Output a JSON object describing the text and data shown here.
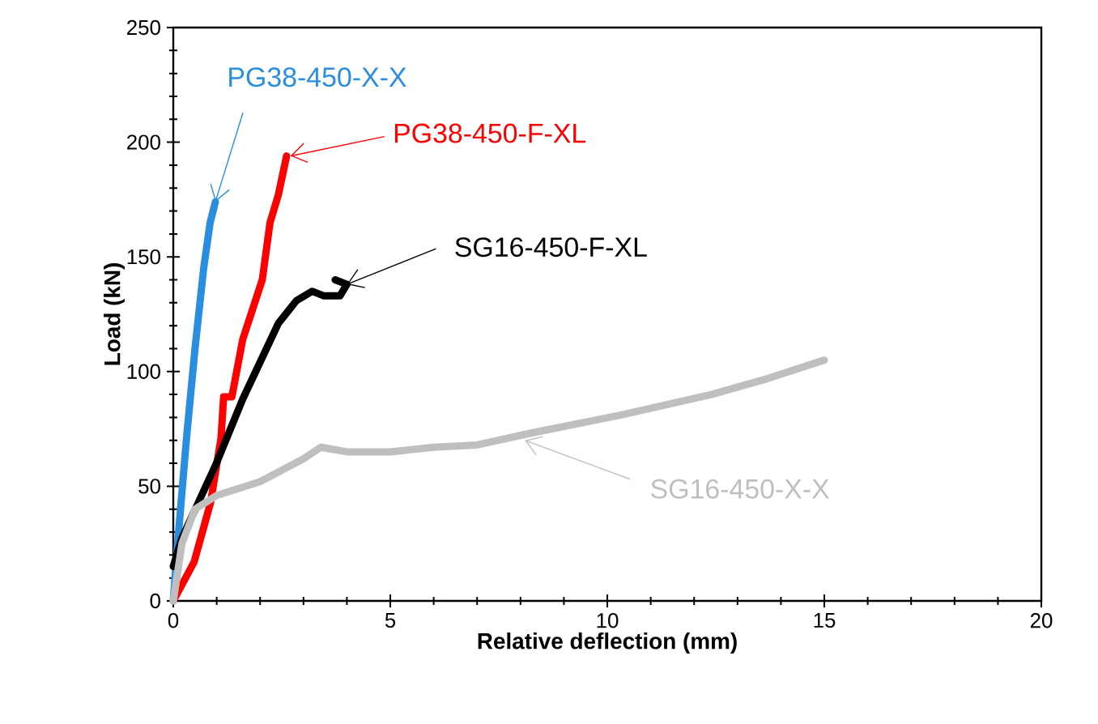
{
  "chart_data": {
    "type": "line",
    "xlabel": "Relative deflection (mm)",
    "ylabel": "Load (kN)",
    "xlim": [
      0,
      20
    ],
    "ylim": [
      0,
      250
    ],
    "xticks": [
      0,
      5,
      10,
      15,
      20
    ],
    "yticks": [
      0,
      50,
      100,
      150,
      200,
      250
    ],
    "series": [
      {
        "color": "#2a8ee0",
        "x": [
          0,
          0.1,
          0.3,
          0.5,
          0.7,
          0.85,
          0.97
        ],
        "values": [
          0,
          25,
          70,
          110,
          145,
          165,
          174
        ]
      },
      {
        "color": "#ff0000",
        "x": [
          0,
          0.48,
          0.86,
          1.1,
          1.16,
          1.35,
          1.6,
          2.05,
          2.23,
          2.42,
          2.61
        ],
        "values": [
          0,
          17,
          43,
          71,
          89,
          89,
          114,
          140,
          165,
          177,
          194
        ]
      },
      {
        "color": "#000000",
        "x": [
          0,
          0.19,
          0.97,
          1.6,
          2.42,
          2.84,
          3.2,
          3.47,
          3.84,
          4.0,
          3.73
        ],
        "values": [
          15,
          27,
          59,
          88,
          121,
          131,
          135,
          133,
          133,
          138,
          140
        ]
      },
      {
        "color": "#bfbfbf",
        "x": [
          0,
          0.2,
          0.5,
          1,
          2,
          3,
          3.4,
          4,
          5,
          6,
          7,
          8.2,
          10.3,
          12.4,
          13.7,
          15
        ],
        "values": [
          0,
          25,
          40,
          46,
          52,
          62,
          67,
          65,
          65,
          67,
          68,
          73,
          81,
          90,
          97,
          105
        ]
      }
    ],
    "annotations": [
      {
        "text": "PG38-450-X-X",
        "x": 0.97,
        "y": 174
      },
      {
        "text": "PG38-450-F-XL",
        "x": 2.7,
        "y": 194
      },
      {
        "text": "SG16-450-F-XL",
        "x": 4.0,
        "y": 138
      },
      {
        "text": "SG16-450-X-X",
        "x": 8.1,
        "y": 70
      }
    ]
  }
}
